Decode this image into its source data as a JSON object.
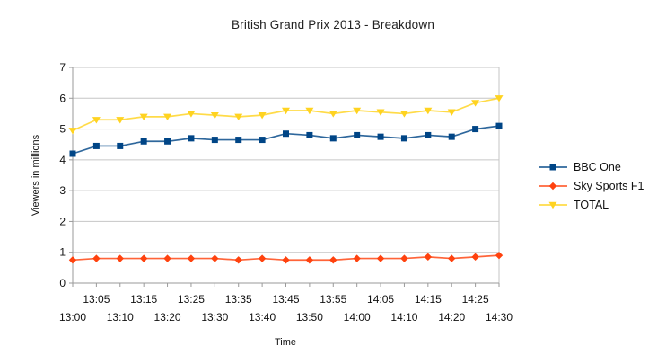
{
  "title": "British Grand Prix 2013 - Breakdown",
  "chart_data": {
    "type": "line",
    "title": "British Grand Prix 2013 - Breakdown",
    "xlabel": "Time",
    "ylabel": "Viewers in millions",
    "ylim": [
      0,
      7
    ],
    "ytick_step": 1,
    "yticks": [
      0,
      1,
      2,
      3,
      4,
      5,
      6,
      7
    ],
    "grid": "horizontal",
    "legend_position": "right",
    "categories": [
      "13:00",
      "13:05",
      "13:10",
      "13:15",
      "13:20",
      "13:25",
      "13:30",
      "13:35",
      "13:40",
      "13:45",
      "13:50",
      "13:55",
      "14:00",
      "14:05",
      "14:10",
      "14:15",
      "14:20",
      "14:25",
      "14:30"
    ],
    "series": [
      {
        "name": "BBC One",
        "color": "#004586",
        "marker": "square",
        "values": [
          4.2,
          4.45,
          4.45,
          4.6,
          4.6,
          4.7,
          4.65,
          4.65,
          4.65,
          4.85,
          4.8,
          4.7,
          4.8,
          4.75,
          4.7,
          4.8,
          4.75,
          5.0,
          5.1
        ]
      },
      {
        "name": "Sky Sports F1",
        "color": "#FF420E",
        "marker": "diamond",
        "values": [
          0.75,
          0.8,
          0.8,
          0.8,
          0.8,
          0.8,
          0.8,
          0.75,
          0.8,
          0.75,
          0.75,
          0.75,
          0.8,
          0.8,
          0.8,
          0.85,
          0.8,
          0.85,
          0.9
        ]
      },
      {
        "name": "TOTAL",
        "color": "#FFD320",
        "marker": "triangle-down",
        "values": [
          4.95,
          5.3,
          5.3,
          5.4,
          5.4,
          5.5,
          5.45,
          5.4,
          5.45,
          5.6,
          5.6,
          5.5,
          5.6,
          5.55,
          5.5,
          5.6,
          5.55,
          5.85,
          6.0
        ]
      }
    ],
    "colors": {
      "gridline": "#c6c6c6",
      "axis": "#9a9a9a",
      "tick_label": "#111111"
    }
  }
}
